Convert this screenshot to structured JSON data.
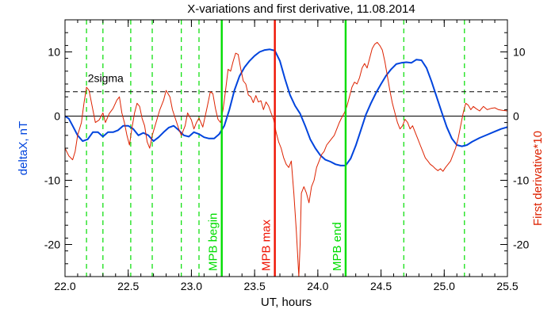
{
  "chart_data": {
    "type": "line",
    "title": "X-variations and first derivative, 11.08.2014",
    "xlabel": "UT, hours",
    "ylabel_left": "deltaX, nT",
    "ylabel_right": "First derivative*10",
    "xlim": [
      22.0,
      25.5
    ],
    "ylim": [
      -25,
      15
    ],
    "x_ticks": [
      22.0,
      22.5,
      23.0,
      23.5,
      24.0,
      24.5,
      25.0,
      25.5
    ],
    "x_tick_labels": [
      "22.0",
      "22.5",
      "23.0",
      "23.5",
      "24.0",
      "24.5",
      "25.0",
      "25.5"
    ],
    "y_ticks": [
      10,
      0,
      -10,
      -20
    ],
    "y_tick_labels": [
      "10",
      "0",
      "-10",
      "-20"
    ],
    "colors": {
      "deltaX": "#0044dd",
      "derivative": "#dd2200",
      "mpb_marker": "#00dd00",
      "mpb_max": "#ee1100",
      "axis": "#000000",
      "left_label": "#0044dd",
      "right_label": "#dd2200"
    },
    "threshold": {
      "label": "2sigma",
      "y": 3.8,
      "style": "dashed"
    },
    "zero_line": 0,
    "markers": [
      {
        "label": "MPB begin",
        "x": 23.24,
        "color": "#00dd00"
      },
      {
        "label": "MPB max",
        "x": 23.66,
        "color": "#ee1100"
      },
      {
        "label": "MPB end",
        "x": 24.22,
        "color": "#00dd00"
      }
    ],
    "dashed_verticals": [
      22.17,
      22.3,
      22.52,
      22.69,
      22.92,
      23.06,
      24.68,
      25.16
    ],
    "series": [
      {
        "color": "#0044dd",
        "width": 2,
        "points": [
          [
            22.0,
            0
          ],
          [
            22.03,
            -0.4
          ],
          [
            22.06,
            -1.5
          ],
          [
            22.1,
            -3.0
          ],
          [
            22.14,
            -3.9
          ],
          [
            22.18,
            -3.6
          ],
          [
            22.22,
            -2.5
          ],
          [
            22.26,
            -2.5
          ],
          [
            22.3,
            -3.2
          ],
          [
            22.34,
            -2.5
          ],
          [
            22.38,
            -2.5
          ],
          [
            22.42,
            -2.2
          ],
          [
            22.46,
            -1.5
          ],
          [
            22.5,
            -1.5
          ],
          [
            22.54,
            -2.0
          ],
          [
            22.58,
            -3.0
          ],
          [
            22.62,
            -2.6
          ],
          [
            22.66,
            -3.0
          ],
          [
            22.7,
            -3.9
          ],
          [
            22.74,
            -3.3
          ],
          [
            22.78,
            -2.5
          ],
          [
            22.82,
            -1.8
          ],
          [
            22.86,
            -1.5
          ],
          [
            22.9,
            -2.2
          ],
          [
            22.94,
            -3.0
          ],
          [
            22.98,
            -3.2
          ],
          [
            23.02,
            -2.5
          ],
          [
            23.06,
            -2.8
          ],
          [
            23.1,
            -3.3
          ],
          [
            23.14,
            -3.5
          ],
          [
            23.18,
            -3.5
          ],
          [
            23.22,
            -2.8
          ],
          [
            23.26,
            -1.5
          ],
          [
            23.3,
            1.0
          ],
          [
            23.34,
            4.0
          ],
          [
            23.38,
            6.2
          ],
          [
            23.42,
            7.6
          ],
          [
            23.46,
            8.6
          ],
          [
            23.5,
            9.4
          ],
          [
            23.54,
            10.0
          ],
          [
            23.58,
            10.3
          ],
          [
            23.62,
            10.4
          ],
          [
            23.66,
            10.2
          ],
          [
            23.7,
            8.6
          ],
          [
            23.74,
            5.8
          ],
          [
            23.78,
            3.3
          ],
          [
            23.82,
            1.6
          ],
          [
            23.86,
            0.4
          ],
          [
            23.9,
            -1.5
          ],
          [
            23.94,
            -3.6
          ],
          [
            23.98,
            -5.0
          ],
          [
            24.02,
            -6.1
          ],
          [
            24.06,
            -6.8
          ],
          [
            24.1,
            -7.1
          ],
          [
            24.14,
            -7.5
          ],
          [
            24.18,
            -7.7
          ],
          [
            24.22,
            -7.7
          ],
          [
            24.26,
            -6.6
          ],
          [
            24.3,
            -4.6
          ],
          [
            24.34,
            -2.2
          ],
          [
            24.38,
            0.2
          ],
          [
            24.42,
            2.0
          ],
          [
            24.46,
            3.6
          ],
          [
            24.5,
            5.0
          ],
          [
            24.54,
            6.3
          ],
          [
            24.58,
            7.3
          ],
          [
            24.62,
            8.1
          ],
          [
            24.66,
            8.3
          ],
          [
            24.7,
            8.4
          ],
          [
            24.74,
            8.3
          ],
          [
            24.78,
            8.8
          ],
          [
            24.82,
            8.7
          ],
          [
            24.86,
            7.5
          ],
          [
            24.9,
            5.4
          ],
          [
            24.94,
            3.0
          ],
          [
            24.98,
            0.6
          ],
          [
            25.02,
            -1.7
          ],
          [
            25.06,
            -3.5
          ],
          [
            25.1,
            -4.5
          ],
          [
            25.14,
            -4.7
          ],
          [
            25.18,
            -4.5
          ],
          [
            25.22,
            -4.0
          ],
          [
            25.28,
            -3.4
          ],
          [
            25.34,
            -2.9
          ],
          [
            25.4,
            -2.4
          ],
          [
            25.45,
            -2.0
          ],
          [
            25.5,
            -1.7
          ]
        ]
      },
      {
        "color": "#dd2200",
        "width": 1,
        "points": [
          [
            22.0,
            -5.0
          ],
          [
            22.03,
            -6.2
          ],
          [
            22.06,
            -6.8
          ],
          [
            22.08,
            -5.5
          ],
          [
            22.1,
            -3.0
          ],
          [
            22.13,
            -1.0
          ],
          [
            22.15,
            2.0
          ],
          [
            22.17,
            4.5
          ],
          [
            22.19,
            4.0
          ],
          [
            22.21,
            2.0
          ],
          [
            22.24,
            -1.0
          ],
          [
            22.27,
            -0.6
          ],
          [
            22.3,
            0.5
          ],
          [
            22.32,
            -1.0
          ],
          [
            22.35,
            0.4
          ],
          [
            22.38,
            1.2
          ],
          [
            22.41,
            2.5
          ],
          [
            22.43,
            3.0
          ],
          [
            22.45,
            0.5
          ],
          [
            22.47,
            -1.0
          ],
          [
            22.49,
            -3.0
          ],
          [
            22.51,
            -4.5
          ],
          [
            22.53,
            -1.8
          ],
          [
            22.55,
            0.5
          ],
          [
            22.57,
            2.0
          ],
          [
            22.59,
            1.5
          ],
          [
            22.61,
            -0.4
          ],
          [
            22.63,
            -1.5
          ],
          [
            22.65,
            -4.0
          ],
          [
            22.67,
            -5.0
          ],
          [
            22.69,
            -3.0
          ],
          [
            22.72,
            -1.0
          ],
          [
            22.75,
            1.0
          ],
          [
            22.78,
            2.5
          ],
          [
            22.8,
            4.0
          ],
          [
            22.83,
            3.0
          ],
          [
            22.85,
            1.0
          ],
          [
            22.88,
            -0.8
          ],
          [
            22.9,
            -2.0
          ],
          [
            22.92,
            -3.0
          ],
          [
            22.95,
            -1.5
          ],
          [
            22.97,
            0.5
          ],
          [
            23.0,
            -0.6
          ],
          [
            23.02,
            -2.0
          ],
          [
            23.04,
            -1.0
          ],
          [
            23.06,
            -0.3
          ],
          [
            23.09,
            -1.7
          ],
          [
            23.12,
            1.0
          ],
          [
            23.15,
            3.8
          ],
          [
            23.17,
            3.5
          ],
          [
            23.19,
            1.2
          ],
          [
            23.21,
            -0.5
          ],
          [
            23.23,
            -1.0
          ],
          [
            23.25,
            1.0
          ],
          [
            23.27,
            4.0
          ],
          [
            23.29,
            7.3
          ],
          [
            23.31,
            7.0
          ],
          [
            23.33,
            8.5
          ],
          [
            23.35,
            9.8
          ],
          [
            23.37,
            9.6
          ],
          [
            23.39,
            7.4
          ],
          [
            23.41,
            5.5
          ],
          [
            23.43,
            5.0
          ],
          [
            23.45,
            3.3
          ],
          [
            23.47,
            3.0
          ],
          [
            23.49,
            2.1
          ],
          [
            23.51,
            3.2
          ],
          [
            23.53,
            2.2
          ],
          [
            23.55,
            2.4
          ],
          [
            23.57,
            1.0
          ],
          [
            23.59,
            2.2
          ],
          [
            23.61,
            1.6
          ],
          [
            23.63,
            0.5
          ],
          [
            23.65,
            -0.5
          ],
          [
            23.67,
            -2.5
          ],
          [
            23.69,
            -4.0
          ],
          [
            23.71,
            -5.0
          ],
          [
            23.73,
            -6.5
          ],
          [
            23.75,
            -7.5
          ],
          [
            23.77,
            -8.0
          ],
          [
            23.79,
            -7.0
          ],
          [
            23.81,
            -12.0
          ],
          [
            23.83,
            -18.0
          ],
          [
            23.85,
            -25.0
          ],
          [
            23.86,
            -20.0
          ],
          [
            23.87,
            -12.0
          ],
          [
            23.89,
            -11.0
          ],
          [
            23.91,
            -12.0
          ],
          [
            23.93,
            -13.5
          ],
          [
            23.95,
            -11.0
          ],
          [
            23.97,
            -10.0
          ],
          [
            23.99,
            -8.0
          ],
          [
            24.01,
            -7.0
          ],
          [
            24.03,
            -6.0
          ],
          [
            24.05,
            -5.5
          ],
          [
            24.07,
            -4.5
          ],
          [
            24.09,
            -4.0
          ],
          [
            24.11,
            -3.5
          ],
          [
            24.13,
            -3.0
          ],
          [
            24.15,
            -2.0
          ],
          [
            24.17,
            -1.0
          ],
          [
            24.19,
            -0.2
          ],
          [
            24.21,
            0.5
          ],
          [
            24.23,
            1.5
          ],
          [
            24.25,
            3.0
          ],
          [
            24.27,
            4.5
          ],
          [
            24.29,
            5.3
          ],
          [
            24.31,
            5.0
          ],
          [
            24.33,
            6.0
          ],
          [
            24.35,
            7.5
          ],
          [
            24.37,
            8.2
          ],
          [
            24.39,
            7.5
          ],
          [
            24.41,
            9.0
          ],
          [
            24.43,
            10.5
          ],
          [
            24.45,
            11.2
          ],
          [
            24.47,
            11.5
          ],
          [
            24.49,
            11.0
          ],
          [
            24.51,
            10.3
          ],
          [
            24.53,
            8.5
          ],
          [
            24.55,
            6.3
          ],
          [
            24.57,
            4.0
          ],
          [
            24.59,
            2.0
          ],
          [
            24.61,
            0.5
          ],
          [
            24.63,
            -1.0
          ],
          [
            24.65,
            -2.0
          ],
          [
            24.67,
            -1.5
          ],
          [
            24.69,
            -0.5
          ],
          [
            24.71,
            -1.0
          ],
          [
            24.73,
            -2.0
          ],
          [
            24.75,
            -1.5
          ],
          [
            24.77,
            -2.5
          ],
          [
            24.79,
            -3.5
          ],
          [
            24.81,
            -4.5
          ],
          [
            24.83,
            -5.5
          ],
          [
            24.85,
            -6.5
          ],
          [
            24.87,
            -7.0
          ],
          [
            24.89,
            -7.5
          ],
          [
            24.91,
            -7.8
          ],
          [
            24.93,
            -8.2
          ],
          [
            24.95,
            -8.5
          ],
          [
            24.97,
            -8.2
          ],
          [
            24.99,
            -8.6
          ],
          [
            25.01,
            -8.0
          ],
          [
            25.03,
            -7.5
          ],
          [
            25.05,
            -7.0
          ],
          [
            25.07,
            -6.0
          ],
          [
            25.09,
            -5.0
          ],
          [
            25.11,
            -3.5
          ],
          [
            25.13,
            -1.5
          ],
          [
            25.15,
            0.5
          ],
          [
            25.17,
            2.0
          ],
          [
            25.19,
            1.7
          ],
          [
            25.21,
            1.0
          ],
          [
            25.23,
            1.5
          ],
          [
            25.25,
            1.2
          ],
          [
            25.28,
            0.8
          ],
          [
            25.31,
            1.5
          ],
          [
            25.34,
            1.0
          ],
          [
            25.37,
            1.2
          ],
          [
            25.4,
            1.3
          ],
          [
            25.43,
            1.0
          ],
          [
            25.46,
            0.9
          ],
          [
            25.5,
            0.8
          ]
        ]
      }
    ]
  }
}
